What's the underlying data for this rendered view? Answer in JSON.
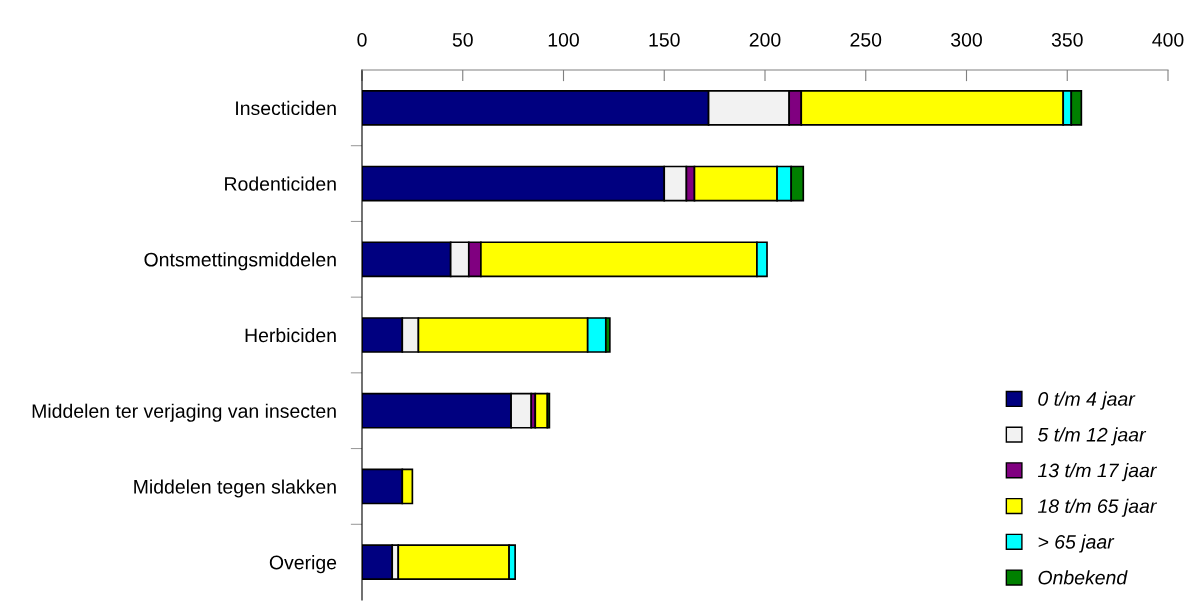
{
  "chart_data": {
    "type": "bar",
    "orientation": "horizontal",
    "stacked": true,
    "categories": [
      "Insecticiden",
      "Rodenticiden",
      "Ontsmettingsmiddelen",
      "Herbiciden",
      "Middelen ter verjaging van insecten",
      "Middelen tegen slakken",
      "Overige"
    ],
    "series": [
      {
        "name": "0 t/m 4 jaar",
        "color": "#000080",
        "values": [
          172,
          150,
          44,
          20,
          74,
          20,
          15
        ]
      },
      {
        "name": "5 t/m 12 jaar",
        "color": "#f2f2f2",
        "values": [
          40,
          11,
          9,
          8,
          10,
          0,
          3
        ]
      },
      {
        "name": "13 t/m 17 jaar",
        "color": "#800080",
        "values": [
          6,
          4,
          6,
          0,
          2,
          0,
          0
        ]
      },
      {
        "name": "18 t/m 65 jaar",
        "color": "#ffff00",
        "values": [
          130,
          41,
          137,
          84,
          6,
          5,
          55
        ]
      },
      {
        "name": "> 65 jaar",
        "color": "#00ffff",
        "values": [
          4,
          7,
          5,
          9,
          0,
          0,
          3
        ]
      },
      {
        "name": "Onbekend",
        "color": "#008000",
        "values": [
          5,
          6,
          0,
          2,
          1,
          0,
          0
        ]
      }
    ],
    "xlim": [
      0,
      400
    ],
    "xticks": [
      0,
      50,
      100,
      150,
      200,
      250,
      300,
      350,
      400
    ],
    "grid": false,
    "legend": "bottom right"
  }
}
